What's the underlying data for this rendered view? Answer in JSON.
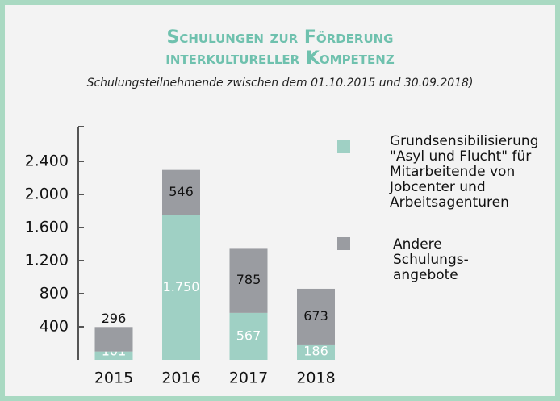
{
  "chart_data": {
    "type": "stacked_bar",
    "title": [
      "Schulungen zur Förderung",
      "interkultureller Kompetenz"
    ],
    "subtitle": "Schulungsteilnehmende zwischen dem 01.10.2015 und 30.09.2018)",
    "categories": [
      "2015",
      "2016",
      "2017",
      "2018"
    ],
    "series": [
      {
        "name": "Grundsensibilisierung \"Asyl und Flucht\" für Mitarbeitende von Jobcenter und Arbeitsagenturen",
        "color": "#9fd0c4",
        "values": [
          101,
          1750,
          567,
          186
        ],
        "value_labels": [
          "101",
          "1.750",
          "567",
          "186"
        ]
      },
      {
        "name": "Andere Schulungs-angebote",
        "color": "#9a9ca1",
        "values": [
          296,
          546,
          785,
          673
        ]
      }
    ],
    "ylim": [
      0,
      2800
    ],
    "yticks": [
      {
        "value": 400,
        "label": "400"
      },
      {
        "value": 800,
        "label": "800"
      },
      {
        "value": 1200,
        "label": "1.200"
      },
      {
        "value": 1600,
        "label": "1.600"
      },
      {
        "value": 2000,
        "label": "2.000"
      },
      {
        "value": 2400,
        "label": "2.400"
      }
    ],
    "legend": "right"
  }
}
